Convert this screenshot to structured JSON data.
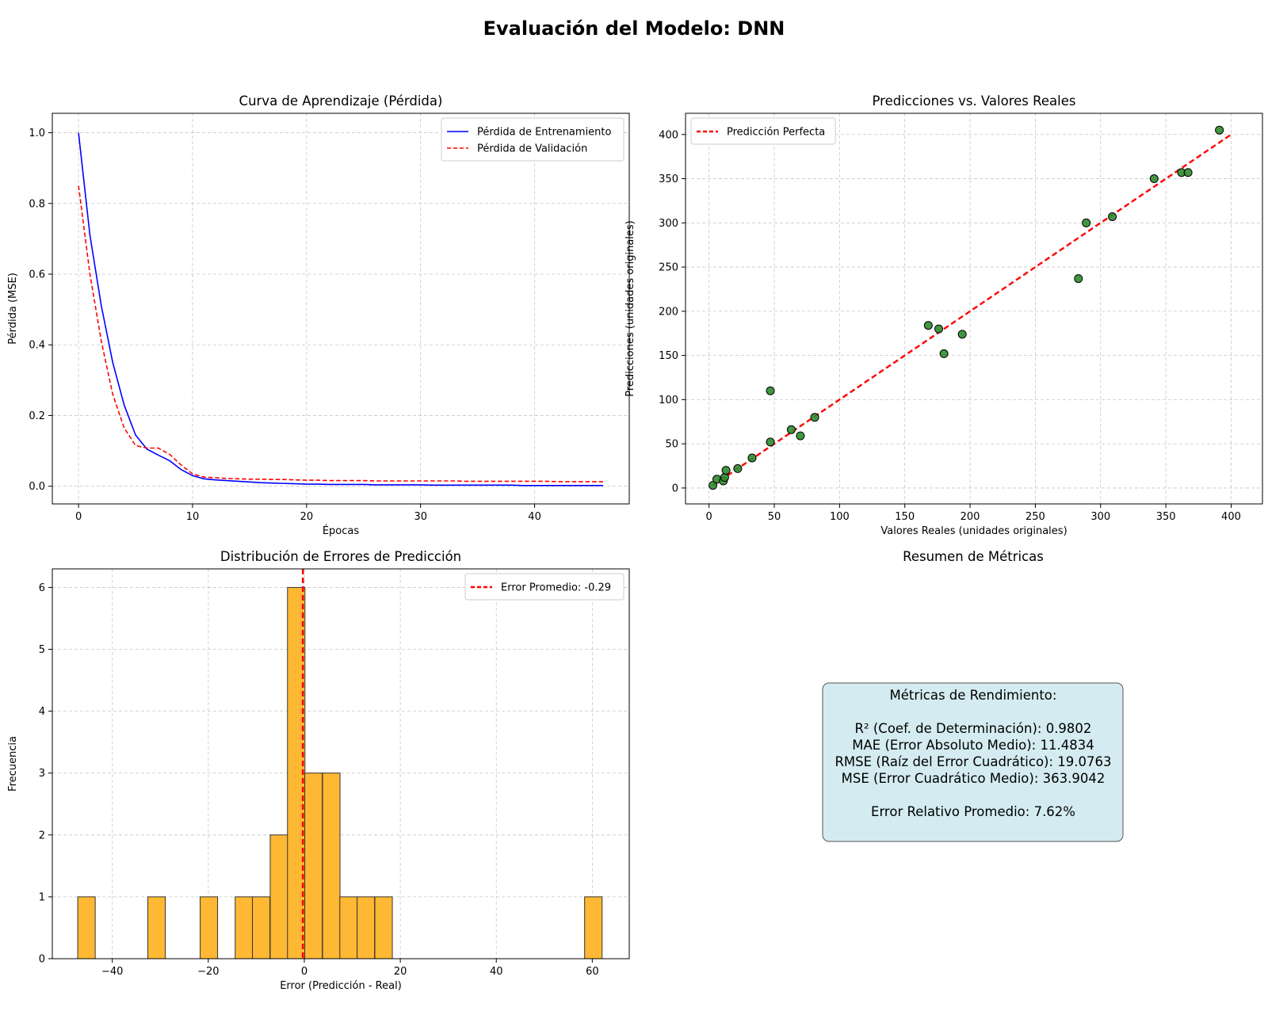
{
  "figure": {
    "suptitle": "Evaluación del Modelo: DNN"
  },
  "chart_data": [
    {
      "type": "line",
      "title": "Curva de Aprendizaje (Pérdida)",
      "xlabel": "Épocas",
      "ylabel": "Pérdida (MSE)",
      "xlim": [
        -2.3,
        48.3
      ],
      "ylim": [
        -0.05,
        1.055
      ],
      "xticks": [
        0,
        10,
        20,
        30,
        40
      ],
      "yticks": [
        0.0,
        0.2,
        0.4,
        0.6,
        0.8,
        1.0
      ],
      "ytick_labels": [
        "0.0",
        "0.2",
        "0.4",
        "0.6",
        "0.8",
        "1.0"
      ],
      "grid": true,
      "legend": "top-right",
      "series": [
        {
          "name": "Pérdida de Entrenamiento",
          "color": "#0000ff",
          "style": "solid",
          "x": [
            0,
            1,
            2,
            3,
            4,
            5,
            6,
            7,
            8,
            9,
            10,
            11,
            12,
            13,
            14,
            15,
            16,
            17,
            18,
            19,
            20,
            21,
            22,
            23,
            24,
            25,
            26,
            27,
            28,
            29,
            30,
            31,
            32,
            33,
            34,
            35,
            36,
            37,
            38,
            39,
            40,
            41,
            42,
            43,
            44,
            45,
            46
          ],
          "y": [
            1.0,
            0.71,
            0.51,
            0.35,
            0.23,
            0.145,
            0.105,
            0.088,
            0.072,
            0.047,
            0.03,
            0.021,
            0.018,
            0.016,
            0.014,
            0.012,
            0.01,
            0.009,
            0.008,
            0.007,
            0.006,
            0.006,
            0.005,
            0.005,
            0.005,
            0.005,
            0.004,
            0.004,
            0.004,
            0.004,
            0.004,
            0.003,
            0.003,
            0.003,
            0.003,
            0.003,
            0.003,
            0.003,
            0.003,
            0.002,
            0.002,
            0.002,
            0.002,
            0.002,
            0.002,
            0.002,
            0.002
          ]
        },
        {
          "name": "Pérdida de Validación",
          "color": "#ff0000",
          "style": "dashed",
          "x": [
            0,
            1,
            2,
            3,
            4,
            5,
            6,
            7,
            8,
            9,
            10,
            11,
            12,
            13,
            14,
            15,
            16,
            17,
            18,
            19,
            20,
            21,
            22,
            23,
            24,
            25,
            26,
            27,
            28,
            29,
            30,
            31,
            32,
            33,
            34,
            35,
            36,
            37,
            38,
            39,
            40,
            41,
            42,
            43,
            44,
            45,
            46
          ],
          "y": [
            0.85,
            0.6,
            0.41,
            0.26,
            0.165,
            0.115,
            0.108,
            0.108,
            0.09,
            0.06,
            0.035,
            0.026,
            0.024,
            0.022,
            0.021,
            0.02,
            0.02,
            0.019,
            0.019,
            0.018,
            0.017,
            0.017,
            0.016,
            0.016,
            0.016,
            0.016,
            0.015,
            0.015,
            0.015,
            0.015,
            0.015,
            0.015,
            0.015,
            0.015,
            0.014,
            0.014,
            0.014,
            0.014,
            0.014,
            0.014,
            0.014,
            0.014,
            0.013,
            0.013,
            0.013,
            0.013,
            0.013
          ]
        }
      ]
    },
    {
      "type": "scatter",
      "title": "Predicciones vs. Valores Reales",
      "xlabel": "Valores Reales (unidades originales)",
      "ylabel": "Predicciones (unidades originales)",
      "xlim": [
        -18,
        424
      ],
      "ylim": [
        -18,
        424
      ],
      "xticks": [
        0,
        50,
        100,
        150,
        200,
        250,
        300,
        350,
        400
      ],
      "yticks": [
        0,
        50,
        100,
        150,
        200,
        250,
        300,
        350,
        400
      ],
      "grid": true,
      "legend": "top-left",
      "point_color": "#2e8b2e",
      "series": [
        {
          "name": "Predicción Perfecta",
          "type": "line",
          "color": "#ff0000",
          "style": "dashed",
          "x": [
            3,
            401
          ],
          "y": [
            3,
            401
          ]
        },
        {
          "type": "scatter",
          "x": [
            3,
            6,
            11,
            12,
            13,
            22,
            33,
            47,
            47,
            63,
            70,
            81,
            168,
            176,
            180,
            194,
            283,
            289,
            309,
            341,
            362,
            367,
            391
          ],
          "y": [
            3,
            10,
            8,
            12,
            20,
            22,
            34,
            52,
            110,
            66,
            59,
            80,
            184,
            180,
            152,
            174,
            237,
            300,
            307,
            350,
            357,
            357,
            405
          ]
        }
      ]
    },
    {
      "type": "bar",
      "title": "Distribución de Errores de Predicción",
      "xlabel": "Error (Predicción - Real)",
      "ylabel": "Frecuencia",
      "xlim": [
        -52.5,
        67.7
      ],
      "ylim": [
        0,
        6.3
      ],
      "xticks": [
        -40,
        -20,
        0,
        20,
        40,
        60
      ],
      "xtick_labels": [
        "−40",
        "−20",
        "0",
        "20",
        "40",
        "60"
      ],
      "yticks": [
        0,
        1,
        2,
        3,
        4,
        5,
        6
      ],
      "grid": true,
      "legend": "top-right",
      "bar_color": "#ffb833",
      "bin_width": 3.64,
      "bins_left": [
        -47.2,
        -32.6,
        -21.7,
        -14.4,
        -10.8,
        -7.1,
        -3.5,
        0.1,
        3.8,
        7.4,
        11.0,
        14.7,
        58.4
      ],
      "values": [
        1,
        1,
        1,
        1,
        1,
        2,
        6,
        3,
        3,
        1,
        1,
        1,
        1
      ],
      "mean_line": {
        "label": "Error Promedio: -0.29",
        "value": -0.29,
        "color": "#ff0000"
      }
    }
  ],
  "metrics_panel": {
    "title": "Resumen de Métricas",
    "box_heading": "Métricas de Rendimiento:",
    "lines": [
      "R² (Coef. de Determinación): 0.9802",
      "MAE (Error Absoluto Medio): 11.4834",
      "RMSE (Raíz del Error Cuadrático): 19.0763",
      "MSE (Error Cuadrático Medio): 363.9042"
    ],
    "footer": "Error Relativo Promedio: 7.62%",
    "box_color": "#d4ecf1"
  }
}
